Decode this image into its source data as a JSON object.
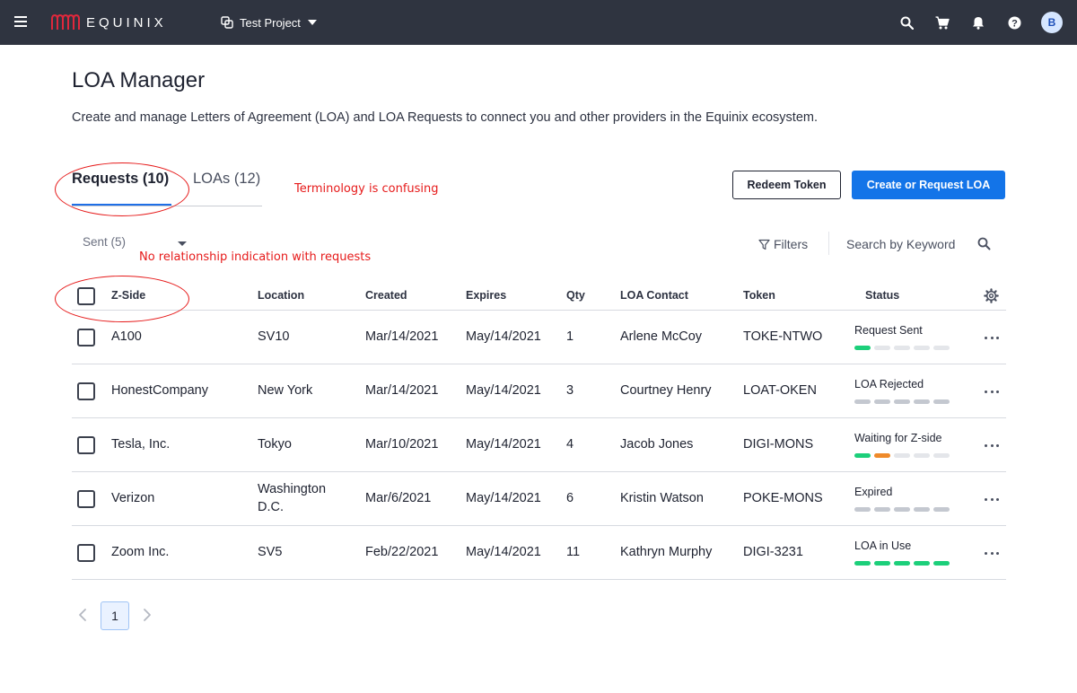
{
  "topbar": {
    "brand": "EQUINIX",
    "project_name": "Test Project",
    "avatar_initial": "B",
    "icons": [
      "menu-icon",
      "search-icon",
      "cart-icon",
      "bell-icon",
      "help-icon"
    ]
  },
  "header": {
    "title": "LOA Manager",
    "description": "Create and manage Letters of Agreement (LOA) and LOA Requests to connect you and other providers in the Equinix ecosystem."
  },
  "tabs": [
    {
      "label": "Requests (10)",
      "active": true
    },
    {
      "label": "LOAs (12)",
      "active": false
    }
  ],
  "actions": {
    "redeem_label": "Redeem Token",
    "create_label": "Create or Request LOA"
  },
  "filter_bar": {
    "sent_label": "Sent (5)",
    "filters_label": "Filters",
    "search_placeholder": "Search by Keyword"
  },
  "table": {
    "columns": [
      "Z-Side",
      "Location",
      "Created",
      "Expires",
      "Qty",
      "LOA Contact",
      "Token",
      "Status"
    ],
    "rows": [
      {
        "zside": "A100",
        "location": [
          "SV10"
        ],
        "created": "Mar/14/2021",
        "expires": "May/14/2021",
        "qty": "1",
        "contact": "Arlene McCoy",
        "token": "TOKE-NTWO",
        "status": "Request Sent",
        "progress": [
          "green",
          "gray-light",
          "gray-light",
          "gray-light",
          "gray-light"
        ]
      },
      {
        "zside": "HonestCompany",
        "location": [
          "New York"
        ],
        "created": "Mar/14/2021",
        "expires": "May/14/2021",
        "qty": "3",
        "contact": "Courtney Henry",
        "token": "LOAT-OKEN",
        "status": "LOA Rejected",
        "progress": [
          "gray",
          "gray",
          "gray",
          "gray",
          "gray"
        ]
      },
      {
        "zside": "Tesla, Inc.",
        "location": [
          "Tokyo"
        ],
        "created": "Mar/10/2021",
        "expires": "May/14/2021",
        "qty": "4",
        "contact": "Jacob Jones",
        "token": "DIGI-MONS",
        "status": "Waiting for Z-side",
        "progress": [
          "green",
          "orange",
          "gray-light",
          "gray-light",
          "gray-light"
        ]
      },
      {
        "zside": "Verizon",
        "location": [
          "Washington",
          "D.C."
        ],
        "created": "Mar/6/2021",
        "expires": "May/14/2021",
        "qty": "6",
        "contact": "Kristin Watson",
        "token": "POKE-MONS",
        "status": "Expired",
        "progress": [
          "gray",
          "gray",
          "gray",
          "gray",
          "gray"
        ]
      },
      {
        "zside": "Zoom Inc.",
        "location": [
          "SV5"
        ],
        "created": "Feb/22/2021",
        "expires": "May/14/2021",
        "qty": "11",
        "contact": "Kathryn Murphy",
        "token": "DIGI-3231",
        "status": "LOA in Use",
        "progress": [
          "green",
          "green",
          "green",
          "green",
          "green"
        ]
      }
    ]
  },
  "pagination": {
    "current": "1"
  },
  "annotations": {
    "tabs_note": "Terminology is confusing",
    "zside_note": "No relationship indication with requests"
  },
  "colors": {
    "green": "#1ccf7a",
    "orange": "#ef8a2a",
    "gray": "#c4c8d0",
    "gray-light": "#e4e6ea",
    "accent": "#1374e8",
    "annotation": "#e61a1a"
  }
}
